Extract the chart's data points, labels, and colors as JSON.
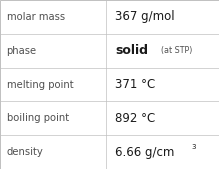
{
  "rows": [
    {
      "label": "molar mass",
      "value": "367 g/mol",
      "value_parts": null
    },
    {
      "label": "phase",
      "value": null,
      "value_parts": true
    },
    {
      "label": "melting point",
      "value": "371 °C",
      "value_parts": null
    },
    {
      "label": "boiling point",
      "value": "892 °C",
      "value_parts": null
    },
    {
      "label": "density",
      "value": "6.66 g/cm",
      "superscript": "3",
      "value_parts": null
    }
  ],
  "col_split": 0.485,
  "background": "#ffffff",
  "border_color": "#c0c0c0",
  "label_color": "#505050",
  "value_color": "#1a1a1a",
  "label_fontsize": 7.2,
  "value_fontsize": 8.5,
  "small_fontsize": 5.8,
  "solid_fontsize": 9.0
}
